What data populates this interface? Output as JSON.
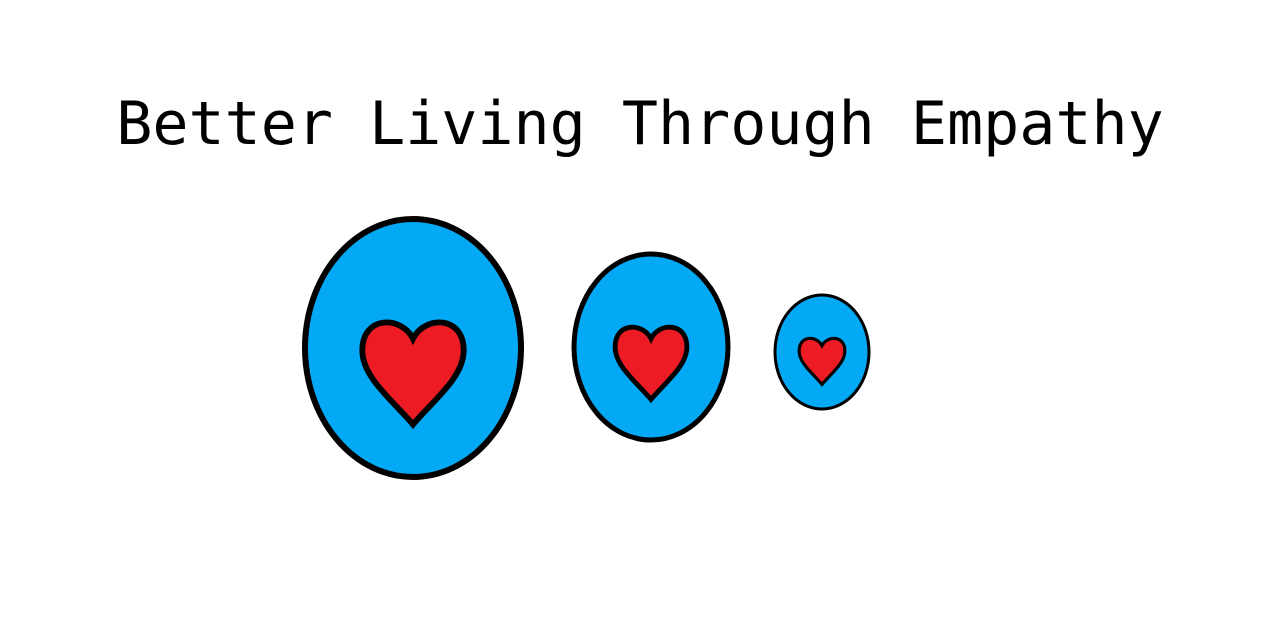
{
  "title": "Better Living Through Empathy",
  "colors": {
    "background": "#ffffff",
    "circle_fill": "#03a9f4",
    "heart_fill": "#ed1c24",
    "outline": "#000000"
  },
  "icons": [
    "large-circle-heart-icon",
    "medium-circle-heart-icon",
    "small-circle-heart-icon"
  ]
}
